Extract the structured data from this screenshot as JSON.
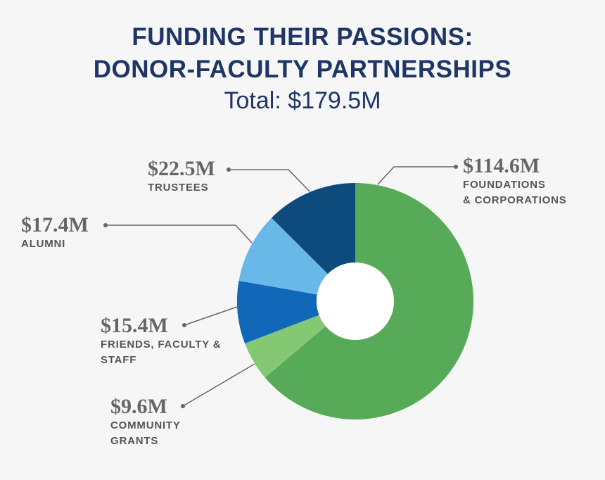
{
  "chart_data": {
    "type": "donut",
    "title": "FUNDING THEIR PASSIONS:\nDONOR-FACULTY PARTNERSHIPS",
    "subtitle": "Total: $179.5M",
    "categories": [
      "FOUNDATIONS\n& CORPORATIONS",
      "COMMUNITY\nGRANTS",
      "FRIENDS, FACULTY &\nSTAFF",
      "ALUMNI",
      "TRUSTEES"
    ],
    "values": [
      114.6,
      9.6,
      15.4,
      17.4,
      22.5
    ],
    "value_labels": [
      "$114.6M",
      "$9.6M",
      "$15.4M",
      "$17.4M",
      "$22.5M"
    ],
    "colors": [
      "#57ab58",
      "#84c874",
      "#1168b8",
      "#69b8e8",
      "#0d4b7c"
    ]
  }
}
